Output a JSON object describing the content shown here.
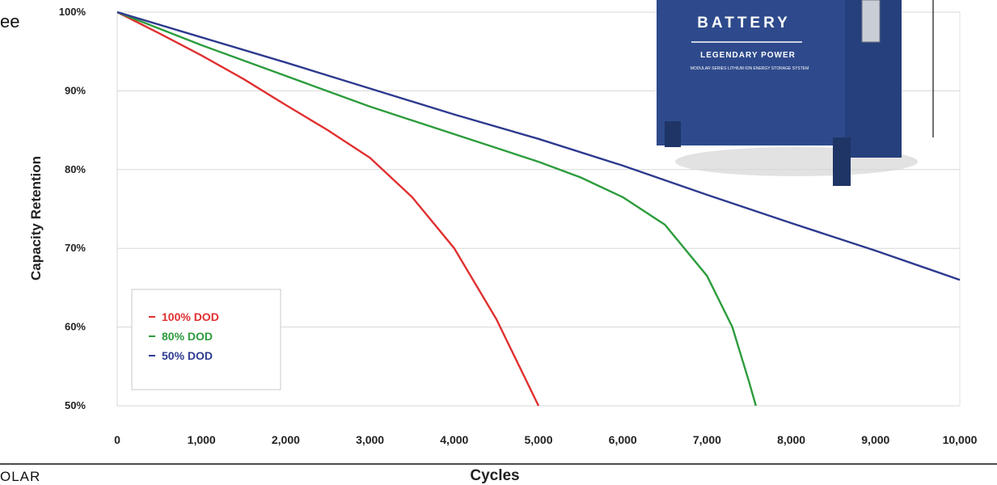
{
  "page": {
    "fragment_left_text": "ee",
    "fragment_bottom_text": "OLAR"
  },
  "product_image": {
    "brand_line": "BATTERY",
    "tagline": "LEGENDARY POWER",
    "small_text_1": "MODULAR SERIES LITHIUM ION ENERGY STORAGE SYSTEM",
    "body_color": "#2e4a8c"
  },
  "chart_data": {
    "type": "line",
    "title": "",
    "xlabel": "Cycles",
    "ylabel": "Capacity Retention",
    "xlim": [
      0,
      10000
    ],
    "ylim": [
      50,
      100
    ],
    "x_ticks": [
      0,
      1000,
      2000,
      3000,
      4000,
      5000,
      6000,
      7000,
      8000,
      9000,
      10000
    ],
    "x_tick_labels": [
      "0",
      "1,000",
      "2,000",
      "3,000",
      "4,000",
      "5,000",
      "6,000",
      "7,000",
      "8,000",
      "9,000",
      "10,000"
    ],
    "y_ticks": [
      50,
      60,
      70,
      80,
      90,
      100
    ],
    "y_tick_labels": [
      "50%",
      "60%",
      "70%",
      "80%",
      "90%",
      "100%"
    ],
    "grid": true,
    "legend_position": "bottom-left",
    "series": [
      {
        "name": "100% DOD",
        "color": "#e03030",
        "points": [
          [
            0,
            100
          ],
          [
            500,
            97.3
          ],
          [
            1000,
            94.5
          ],
          [
            1500,
            91.5
          ],
          [
            2000,
            88.2
          ],
          [
            2500,
            85
          ],
          [
            3000,
            81.5
          ],
          [
            3500,
            76.5
          ],
          [
            4000,
            70
          ],
          [
            4500,
            61
          ],
          [
            5000,
            50
          ]
        ]
      },
      {
        "name": "80% DOD",
        "color": "#2c9c3c",
        "points": [
          [
            0,
            100
          ],
          [
            1000,
            95.8
          ],
          [
            2000,
            91.9
          ],
          [
            3000,
            88
          ],
          [
            4000,
            84.5
          ],
          [
            5000,
            81
          ],
          [
            5500,
            79
          ],
          [
            6000,
            76.5
          ],
          [
            6500,
            73
          ],
          [
            7000,
            66.5
          ],
          [
            7300,
            60
          ],
          [
            7500,
            53
          ],
          [
            7580,
            50
          ]
        ]
      },
      {
        "name": "50% DOD",
        "color": "#2d3a8f",
        "points": [
          [
            0,
            100
          ],
          [
            1000,
            96.8
          ],
          [
            2000,
            93.6
          ],
          [
            3000,
            90.3
          ],
          [
            4000,
            87
          ],
          [
            5000,
            83.9
          ],
          [
            6000,
            80.5
          ],
          [
            7000,
            76.8
          ],
          [
            8000,
            73.2
          ],
          [
            9000,
            69.7
          ],
          [
            10000,
            66
          ]
        ]
      }
    ]
  }
}
